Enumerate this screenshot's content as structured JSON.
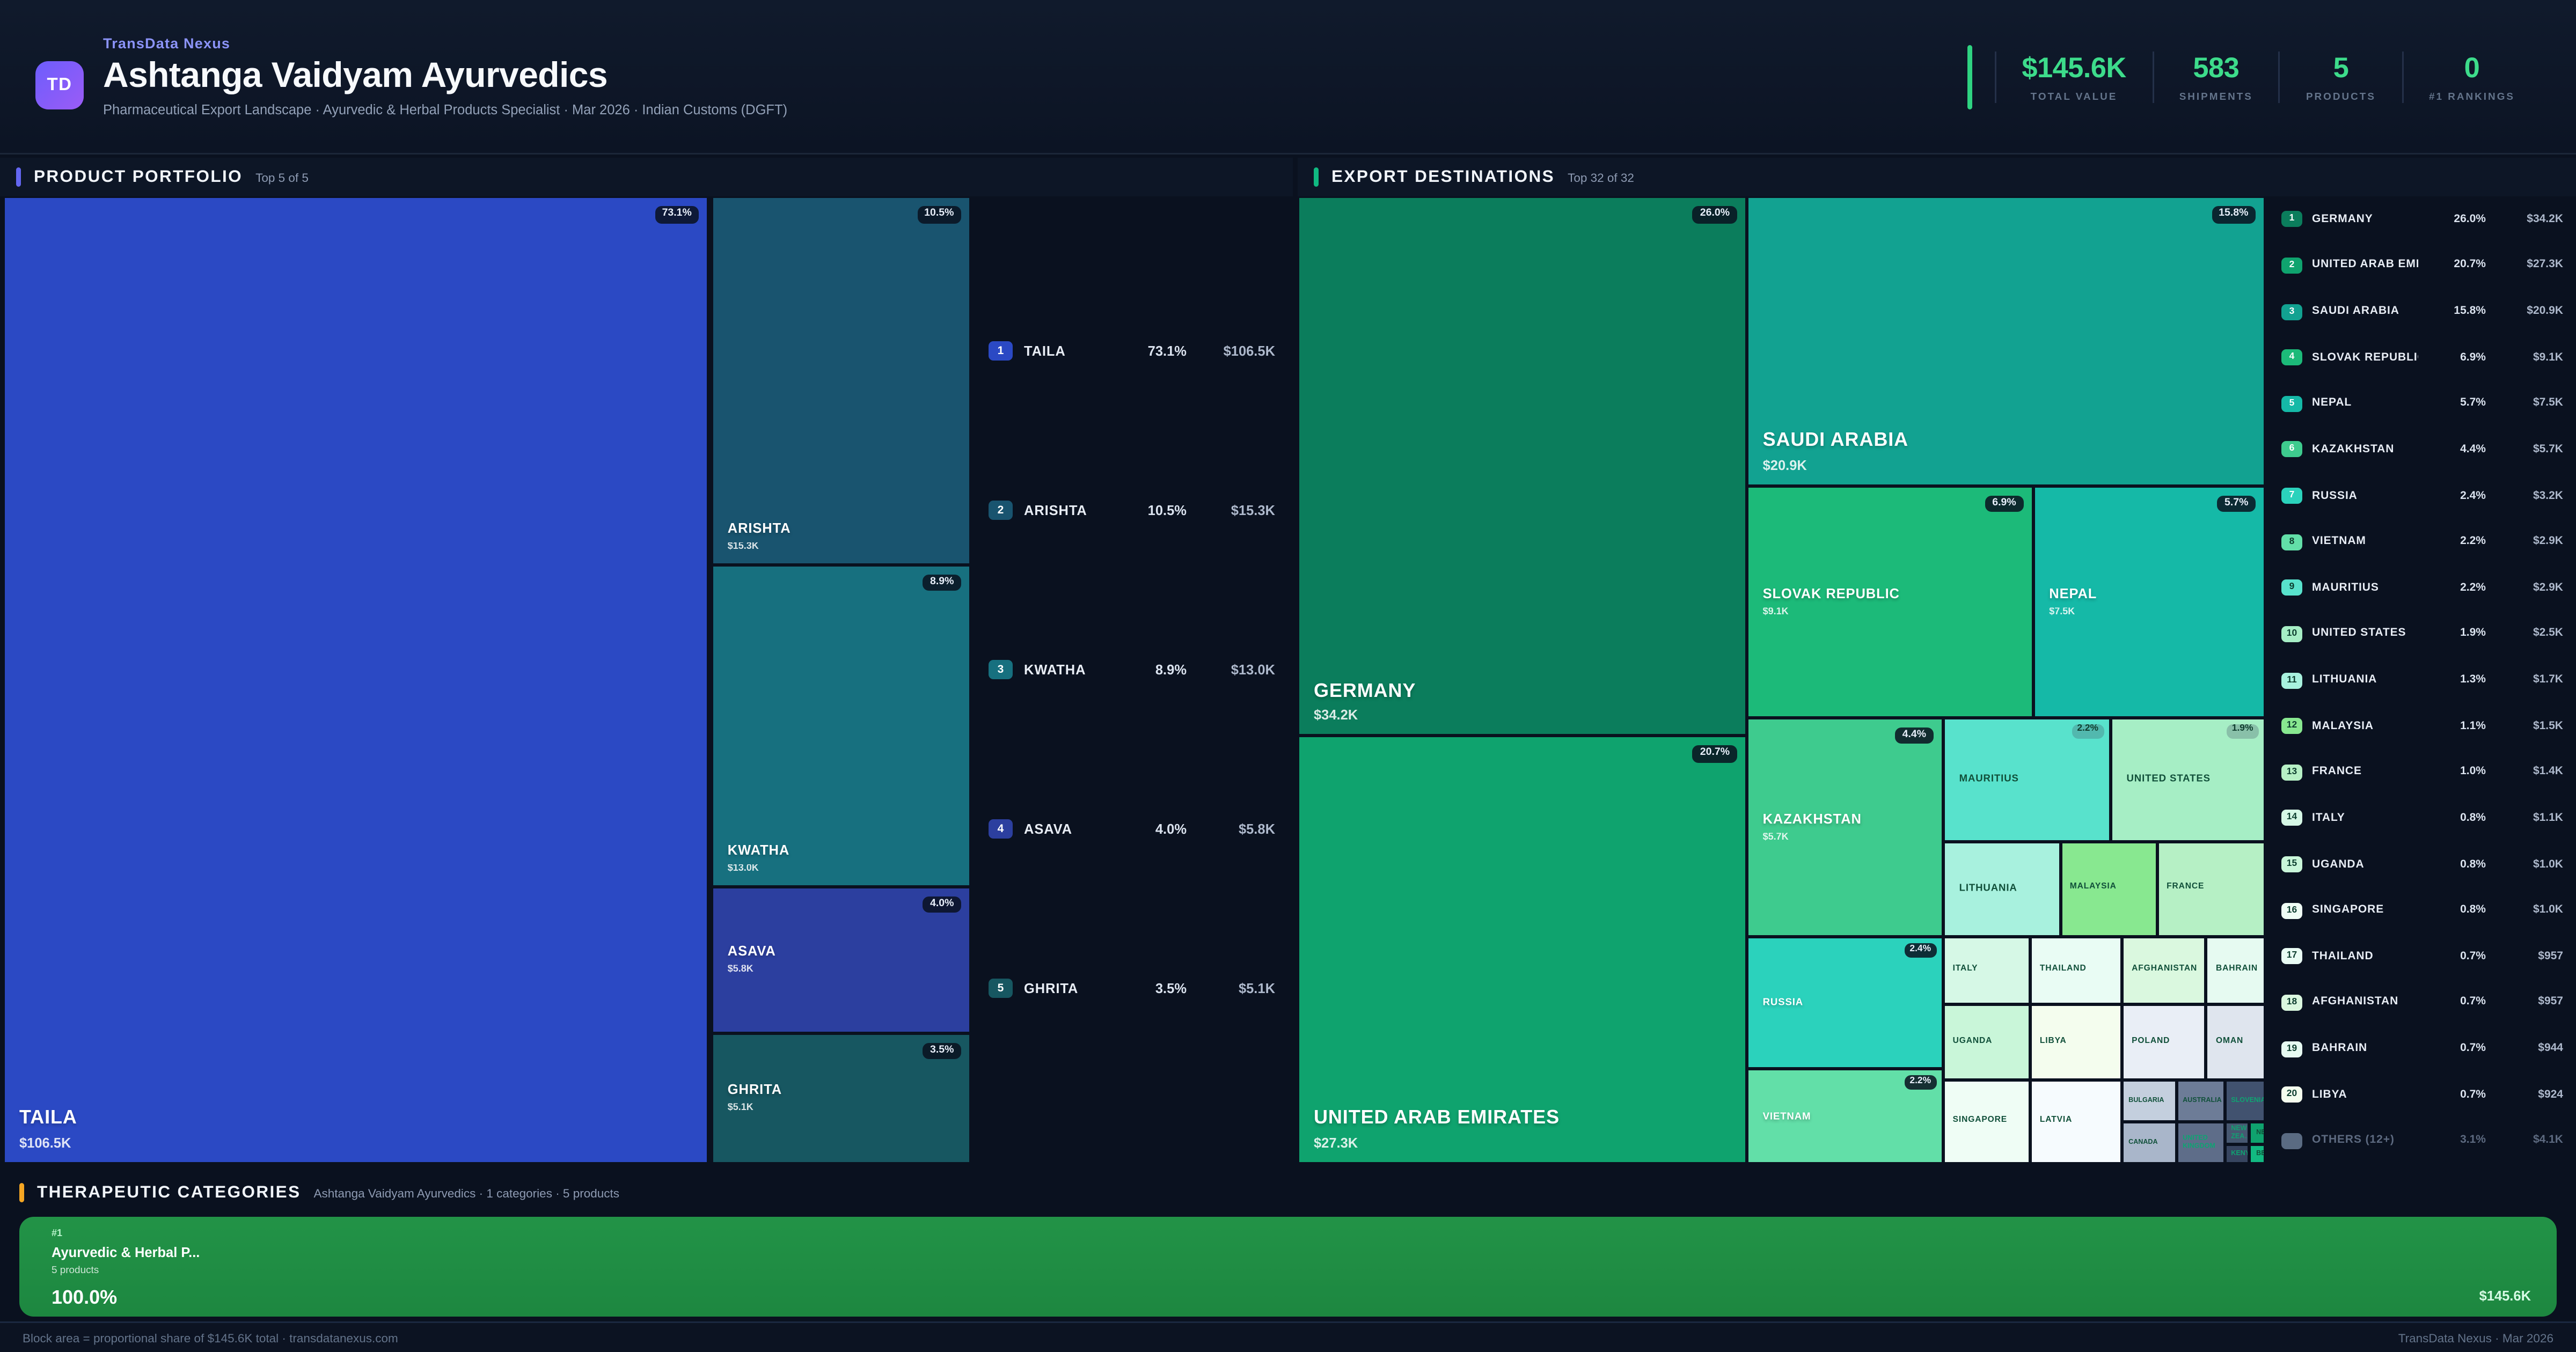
{
  "header": {
    "brand": "TransData Nexus",
    "logo": "TD",
    "title": "Ashtanga Vaidyam Ayurvedics",
    "subtitle": "Pharmaceutical Export Landscape · Ayurvedic & Herbal Products Specialist · Mar 2026 · Indian Customs (DGFT)",
    "stats": [
      {
        "value": "$145.6K",
        "label": "TOTAL VALUE"
      },
      {
        "value": "583",
        "label": "SHIPMENTS"
      },
      {
        "value": "5",
        "label": "PRODUCTS"
      },
      {
        "value": "0",
        "label": "#1 RANKINGS"
      }
    ]
  },
  "portfolio": {
    "title": "PRODUCT PORTFOLIO",
    "subtitle": "Top 5 of 5",
    "accent": "#6366f1",
    "cells": [
      {
        "id": "taila",
        "name": "TAILA",
        "pct": "73.1%",
        "value": "$106.5K",
        "color": "#2b49c4"
      },
      {
        "id": "arishta",
        "name": "ARISHTA",
        "pct": "10.5%",
        "value": "$15.3K",
        "color": "#19546f"
      },
      {
        "id": "kwatha",
        "name": "KWATHA",
        "pct": "8.9%",
        "value": "$13.0K",
        "color": "#17707f"
      },
      {
        "id": "asava",
        "name": "ASAVA",
        "pct": "4.0%",
        "value": "$5.8K",
        "color": "#2c3f9f"
      },
      {
        "id": "ghrita",
        "name": "GHRITA",
        "pct": "3.5%",
        "value": "$5.1K",
        "color": "#175761"
      }
    ],
    "list": [
      {
        "rank": "1",
        "name": "TAILA",
        "pct": "73.1%",
        "value": "$106.5K",
        "color": "#2b49c4"
      },
      {
        "rank": "2",
        "name": "ARISHTA",
        "pct": "10.5%",
        "value": "$15.3K",
        "color": "#19546f"
      },
      {
        "rank": "3",
        "name": "KWATHA",
        "pct": "8.9%",
        "value": "$13.0K",
        "color": "#17707f"
      },
      {
        "rank": "4",
        "name": "ASAVA",
        "pct": "4.0%",
        "value": "$5.8K",
        "color": "#2c3f9f"
      },
      {
        "rank": "5",
        "name": "GHRITA",
        "pct": "3.5%",
        "value": "$5.1K",
        "color": "#175761"
      }
    ]
  },
  "destinations": {
    "title": "EXPORT DESTINATIONS",
    "subtitle": "Top 32 of 32",
    "accent": "#10b981",
    "cells": [
      {
        "id": "germany",
        "name": "GERMANY",
        "pct": "26.0%",
        "value": "$34.2K",
        "color": "#0b7d5c"
      },
      {
        "id": "uae",
        "name": "UNITED ARAB EMIRATES",
        "pct": "20.7%",
        "value": "$27.3K",
        "color": "#0fa36e"
      },
      {
        "id": "saudi",
        "name": "SAUDI ARABIA",
        "pct": "15.8%",
        "value": "$20.9K",
        "color": "#12a291"
      },
      {
        "id": "slovak",
        "name": "SLOVAK REPUBLIC",
        "pct": "6.9%",
        "value": "$9.1K",
        "color": "#1cba79"
      },
      {
        "id": "nepal",
        "name": "NEPAL",
        "pct": "5.7%",
        "value": "$7.5K",
        "color": "#15b9a7"
      },
      {
        "id": "kazakhstan",
        "name": "KAZAKHSTAN",
        "pct": "4.4%",
        "value": "$5.7K",
        "color": "#3ecb8e"
      },
      {
        "id": "russia",
        "name": "RUSSIA",
        "pct": "2.4%",
        "color": "#2bd2bc"
      },
      {
        "id": "vietnam",
        "name": "VIETNAM",
        "pct": "2.2%",
        "color": "#62dfa8"
      },
      {
        "id": "mauritius",
        "name": "MAURITIUS",
        "pct": "2.2%",
        "color": "#58e2cc"
      },
      {
        "id": "us",
        "name": "UNITED STATES",
        "pct": "1.9%",
        "color": "#a6eec5"
      },
      {
        "id": "lithuania",
        "name": "LITHUANIA",
        "color": "#a8f1de"
      },
      {
        "id": "malaysia",
        "name": "MALAYSIA",
        "color": "#88e890"
      },
      {
        "id": "france",
        "name": "FRANCE",
        "color": "#b6f0c5"
      },
      {
        "id": "italy",
        "name": "ITALY",
        "color": "#d6f8e6"
      },
      {
        "id": "thailand",
        "name": "THAILAND",
        "color": "#e9fcf4"
      },
      {
        "id": "afghanistan",
        "name": "AFGHANISTAN",
        "color": "#daf8df"
      },
      {
        "id": "bahrain",
        "name": "BAHRAIN",
        "color": "#e6faf1"
      },
      {
        "id": "uganda",
        "name": "UGANDA",
        "color": "#c9f6d9"
      },
      {
        "id": "libya",
        "name": "LIBYA",
        "color": "#f4fdee"
      },
      {
        "id": "poland",
        "name": "POLAND",
        "color": "#e9eef6"
      },
      {
        "id": "oman",
        "name": "OMAN",
        "color": "#dfe5ee"
      },
      {
        "id": "singapore",
        "name": "SINGAPORE",
        "color": "#effdf5"
      },
      {
        "id": "latvia",
        "name": "LATVIA",
        "color": "#f6fbfe"
      },
      {
        "id": "bulgaria",
        "name": "BULGARIA",
        "color": "#c4cfde"
      },
      {
        "id": "australia",
        "name": "AUSTRALIA",
        "color": "#6d7c97"
      },
      {
        "id": "slovenia",
        "name": "SLOVENIA",
        "color": "#41526f"
      },
      {
        "id": "canada",
        "name": "CANADA",
        "color": "#a9b6ca"
      },
      {
        "id": "uk",
        "name": "UNITED KINGDOM",
        "color": "#5e6d89"
      },
      {
        "id": "newzealand",
        "name": "NEW ZEA…",
        "color": "#475871"
      },
      {
        "id": "ne",
        "name": "NE",
        "color": "#0fa36e"
      },
      {
        "id": "kenya",
        "name": "KENYA",
        "color": "#374560"
      },
      {
        "id": "be",
        "name": "BE",
        "color": "#12b981"
      }
    ],
    "list": [
      {
        "rank": "1",
        "name": "GERMANY",
        "pct": "26.0%",
        "value": "$34.2K",
        "color": "#0b7d5c",
        "tone": "light"
      },
      {
        "rank": "2",
        "name": "UNITED ARAB EMIRATES",
        "pct": "20.7%",
        "value": "$27.3K",
        "color": "#0fa36e",
        "tone": "light"
      },
      {
        "rank": "3",
        "name": "SAUDI ARABIA",
        "pct": "15.8%",
        "value": "$20.9K",
        "color": "#12a291",
        "tone": "light"
      },
      {
        "rank": "4",
        "name": "SLOVAK REPUBLIC",
        "pct": "6.9%",
        "value": "$9.1K",
        "color": "#1cba79",
        "tone": "light"
      },
      {
        "rank": "5",
        "name": "NEPAL",
        "pct": "5.7%",
        "value": "$7.5K",
        "color": "#15b9a7",
        "tone": "light"
      },
      {
        "rank": "6",
        "name": "KAZAKHSTAN",
        "pct": "4.4%",
        "value": "$5.7K",
        "color": "#3ecb8e",
        "tone": "light"
      },
      {
        "rank": "7",
        "name": "RUSSIA",
        "pct": "2.4%",
        "value": "$3.2K",
        "color": "#2bd2bc",
        "tone": "light"
      },
      {
        "rank": "8",
        "name": "VIETNAM",
        "pct": "2.2%",
        "value": "$2.9K",
        "color": "#62dfa8",
        "tone": "dark"
      },
      {
        "rank": "9",
        "name": "MAURITIUS",
        "pct": "2.2%",
        "value": "$2.9K",
        "color": "#58e2cc",
        "tone": "dark"
      },
      {
        "rank": "10",
        "name": "UNITED STATES",
        "pct": "1.9%",
        "value": "$2.5K",
        "color": "#a6eec5",
        "tone": "dark"
      },
      {
        "rank": "11",
        "name": "LITHUANIA",
        "pct": "1.3%",
        "value": "$1.7K",
        "color": "#a8f1de",
        "tone": "dark"
      },
      {
        "rank": "12",
        "name": "MALAYSIA",
        "pct": "1.1%",
        "value": "$1.5K",
        "color": "#88e890",
        "tone": "dark"
      },
      {
        "rank": "13",
        "name": "FRANCE",
        "pct": "1.0%",
        "value": "$1.4K",
        "color": "#b6f0c5",
        "tone": "dark"
      },
      {
        "rank": "14",
        "name": "ITALY",
        "pct": "0.8%",
        "value": "$1.1K",
        "color": "#d6f8e6",
        "tone": "dark"
      },
      {
        "rank": "15",
        "name": "UGANDA",
        "pct": "0.8%",
        "value": "$1.0K",
        "color": "#c9f6d9",
        "tone": "dark"
      },
      {
        "rank": "16",
        "name": "SINGAPORE",
        "pct": "0.8%",
        "value": "$1.0K",
        "color": "#effdf5",
        "tone": "dark"
      },
      {
        "rank": "17",
        "name": "THAILAND",
        "pct": "0.7%",
        "value": "$957",
        "color": "#e9fcf4",
        "tone": "dark"
      },
      {
        "rank": "18",
        "name": "AFGHANISTAN",
        "pct": "0.7%",
        "value": "$957",
        "color": "#daf8df",
        "tone": "dark"
      },
      {
        "rank": "19",
        "name": "BAHRAIN",
        "pct": "0.7%",
        "value": "$944",
        "color": "#e6faf1",
        "tone": "dark"
      },
      {
        "rank": "20",
        "name": "LIBYA",
        "pct": "0.7%",
        "value": "$924",
        "color": "#f4fdee",
        "tone": "dark"
      }
    ],
    "others": {
      "name": "OTHERS (12+)",
      "pct": "3.1%",
      "value": "$4.1K",
      "color": "#5a6b82"
    }
  },
  "categories": {
    "title": "THERAPEUTIC CATEGORIES",
    "subtitle": "Ashtanga Vaidyam Ayurvedics · 1 categories · 5 products",
    "accent": "#f5a623",
    "block": {
      "rank": "#1",
      "name": "Ayurvedic & Herbal P...",
      "products": "5 products",
      "pct": "100.0%",
      "value": "$145.6K",
      "color": "#1f8e44"
    }
  },
  "footer": {
    "left": "Block area = proportional share of $145.6K total · transdatanexus.com",
    "right": "TransData Nexus · Mar 2026"
  },
  "chart_data": [
    {
      "type": "treemap",
      "title": "PRODUCT PORTFOLIO",
      "subtitle": "Top 5 of 5",
      "unit": "USD",
      "items": [
        {
          "label": "TAILA",
          "pct": 73.1,
          "value_usd": 106500
        },
        {
          "label": "ARISHTA",
          "pct": 10.5,
          "value_usd": 15300
        },
        {
          "label": "KWATHA",
          "pct": 8.9,
          "value_usd": 13000
        },
        {
          "label": "ASAVA",
          "pct": 4.0,
          "value_usd": 5800
        },
        {
          "label": "GHRITA",
          "pct": 3.5,
          "value_usd": 5100
        }
      ]
    },
    {
      "type": "treemap",
      "title": "EXPORT DESTINATIONS",
      "subtitle": "Top 32 of 32",
      "unit": "USD",
      "items": [
        {
          "label": "GERMANY",
          "pct": 26.0,
          "value_usd": 34200
        },
        {
          "label": "UNITED ARAB EMIRATES",
          "pct": 20.7,
          "value_usd": 27300
        },
        {
          "label": "SAUDI ARABIA",
          "pct": 15.8,
          "value_usd": 20900
        },
        {
          "label": "SLOVAK REPUBLIC",
          "pct": 6.9,
          "value_usd": 9100
        },
        {
          "label": "NEPAL",
          "pct": 5.7,
          "value_usd": 7500
        },
        {
          "label": "KAZAKHSTAN",
          "pct": 4.4,
          "value_usd": 5700
        },
        {
          "label": "RUSSIA",
          "pct": 2.4,
          "value_usd": 3200
        },
        {
          "label": "VIETNAM",
          "pct": 2.2,
          "value_usd": 2900
        },
        {
          "label": "MAURITIUS",
          "pct": 2.2,
          "value_usd": 2900
        },
        {
          "label": "UNITED STATES",
          "pct": 1.9,
          "value_usd": 2500
        },
        {
          "label": "LITHUANIA",
          "pct": 1.3,
          "value_usd": 1700
        },
        {
          "label": "MALAYSIA",
          "pct": 1.1,
          "value_usd": 1500
        },
        {
          "label": "FRANCE",
          "pct": 1.0,
          "value_usd": 1400
        },
        {
          "label": "ITALY",
          "pct": 0.8,
          "value_usd": 1100
        },
        {
          "label": "UGANDA",
          "pct": 0.8,
          "value_usd": 1000
        },
        {
          "label": "SINGAPORE",
          "pct": 0.8,
          "value_usd": 1000
        },
        {
          "label": "THAILAND",
          "pct": 0.7,
          "value_usd": 957
        },
        {
          "label": "AFGHANISTAN",
          "pct": 0.7,
          "value_usd": 957
        },
        {
          "label": "BAHRAIN",
          "pct": 0.7,
          "value_usd": 944
        },
        {
          "label": "LIBYA",
          "pct": 0.7,
          "value_usd": 924
        },
        {
          "label": "OTHERS (12+)",
          "pct": 3.1,
          "value_usd": 4100
        }
      ]
    },
    {
      "type": "treemap",
      "title": "THERAPEUTIC CATEGORIES",
      "subtitle": "Ashtanga Vaidyam Ayurvedics · 1 categories · 5 products",
      "unit": "USD",
      "items": [
        {
          "label": "Ayurvedic & Herbal P...",
          "pct": 100.0,
          "value_usd": 145600,
          "products": 5
        }
      ]
    }
  ]
}
